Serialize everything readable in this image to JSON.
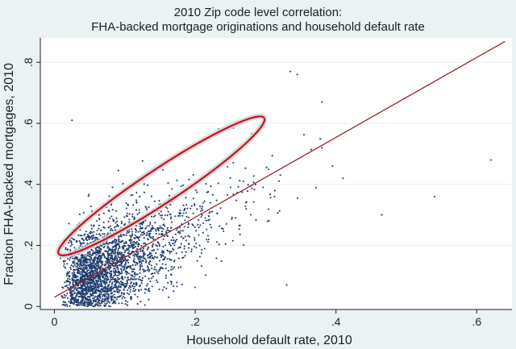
{
  "chart_data": {
    "type": "scatter",
    "title": "2010 Zip code level correlation:",
    "subtitle": "FHA-backed mortgage originations and household default rate",
    "xlabel": "Household default rate, 2010",
    "ylabel": "Fraction FHA-backed mortgages, 2010",
    "xlim": [
      -0.02,
      0.65
    ],
    "ylim": [
      -0.01,
      0.88
    ],
    "x_ticks": [
      {
        "value": 0,
        "label": "0"
      },
      {
        "value": 0.2,
        "label": ".2"
      },
      {
        "value": 0.4,
        "label": ".4"
      },
      {
        "value": 0.6,
        "label": ".6"
      }
    ],
    "y_ticks": [
      {
        "value": 0,
        "label": "0"
      },
      {
        "value": 0.2,
        "label": ".2"
      },
      {
        "value": 0.4,
        "label": ".4"
      },
      {
        "value": 0.6,
        "label": ".6"
      },
      {
        "value": 0.8,
        "label": ".8"
      }
    ],
    "grid": true,
    "scatter_cluster": {
      "approx_point_count": 3000,
      "x_center": 0.07,
      "y_center": 0.2,
      "x_range": [
        0.0,
        0.38
      ],
      "y_range": [
        0.0,
        0.72
      ]
    },
    "outliers": [
      {
        "x": 0.62,
        "y": 0.48
      },
      {
        "x": 0.54,
        "y": 0.36
      },
      {
        "x": 0.465,
        "y": 0.3
      },
      {
        "x": 0.345,
        "y": 0.76
      },
      {
        "x": 0.335,
        "y": 0.77
      },
      {
        "x": 0.38,
        "y": 0.67
      },
      {
        "x": 0.025,
        "y": 0.61
      },
      {
        "x": 0.33,
        "y": 0.07
      },
      {
        "x": 0.38,
        "y": 0.52
      },
      {
        "x": 0.395,
        "y": 0.46
      },
      {
        "x": 0.41,
        "y": 0.42
      }
    ],
    "fit_line": {
      "intercept": 0.03,
      "slope": 1.31,
      "x_range": [
        0.0,
        0.64
      ]
    },
    "highlight_ellipse": {
      "cx": 0.152,
      "cy": 0.395,
      "rx": 0.175,
      "ry": 0.056,
      "angle_deg": 33.5
    },
    "colors": {
      "background": "#eaf2f3",
      "plot_background": "#ffffff",
      "gridlines": "#eaf2f3",
      "points": "#1c3b6e",
      "fit_line": "#a0202a",
      "ellipse": "#c8101e",
      "ellipse_glow": "#d4d4d4"
    }
  }
}
